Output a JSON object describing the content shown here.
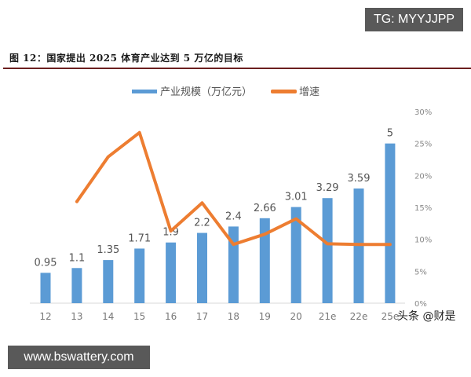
{
  "watermarks": {
    "top": "TG: MYYJJPP",
    "bottom": "www.bswattery.com",
    "source": "头条 @财是"
  },
  "figure": {
    "title": "图 12：国家提出 2025 体育产业达到 5 万亿的目标"
  },
  "colors": {
    "bar": "#5b9bd5",
    "line": "#ed7d31",
    "title_rule": "#6b1f1f",
    "watermark_bg": "#595959"
  },
  "chart_data": {
    "type": "bar+line",
    "title": "图 12：国家提出 2025 体育产业达到 5 万亿的目标",
    "xlabel": "",
    "ylabel": "",
    "categories": [
      "12",
      "13",
      "14",
      "15",
      "16",
      "17",
      "18",
      "19",
      "20",
      "21e",
      "22e",
      "25e"
    ],
    "legend": [
      "产业规模（万亿元）",
      "增速"
    ],
    "legend_position": "top",
    "grid": false,
    "series": [
      {
        "name": "产业规模（万亿元）",
        "type": "bar",
        "axis": "left",
        "values": [
          0.95,
          1.1,
          1.35,
          1.71,
          1.9,
          2.2,
          2.4,
          2.66,
          3.01,
          3.29,
          3.59,
          5
        ],
        "labels": [
          "0.95",
          "1.1",
          "1.35",
          "1.71",
          "1.9",
          "2.2",
          "2.4",
          "2.66",
          "3.01",
          "3.29",
          "3.59",
          "5"
        ]
      },
      {
        "name": "增速",
        "type": "line",
        "axis": "right",
        "unit": "%",
        "values": [
          null,
          15.9,
          22.9,
          26.7,
          11.3,
          15.7,
          9.2,
          10.8,
          13.2,
          9.3,
          9.2,
          9.2
        ]
      }
    ],
    "y_left_range": [
      0,
      6
    ],
    "y_right_range": [
      0,
      30
    ],
    "y_right_ticks": [
      "0%",
      "5%",
      "10%",
      "15%",
      "20%",
      "25%",
      "30%"
    ]
  }
}
